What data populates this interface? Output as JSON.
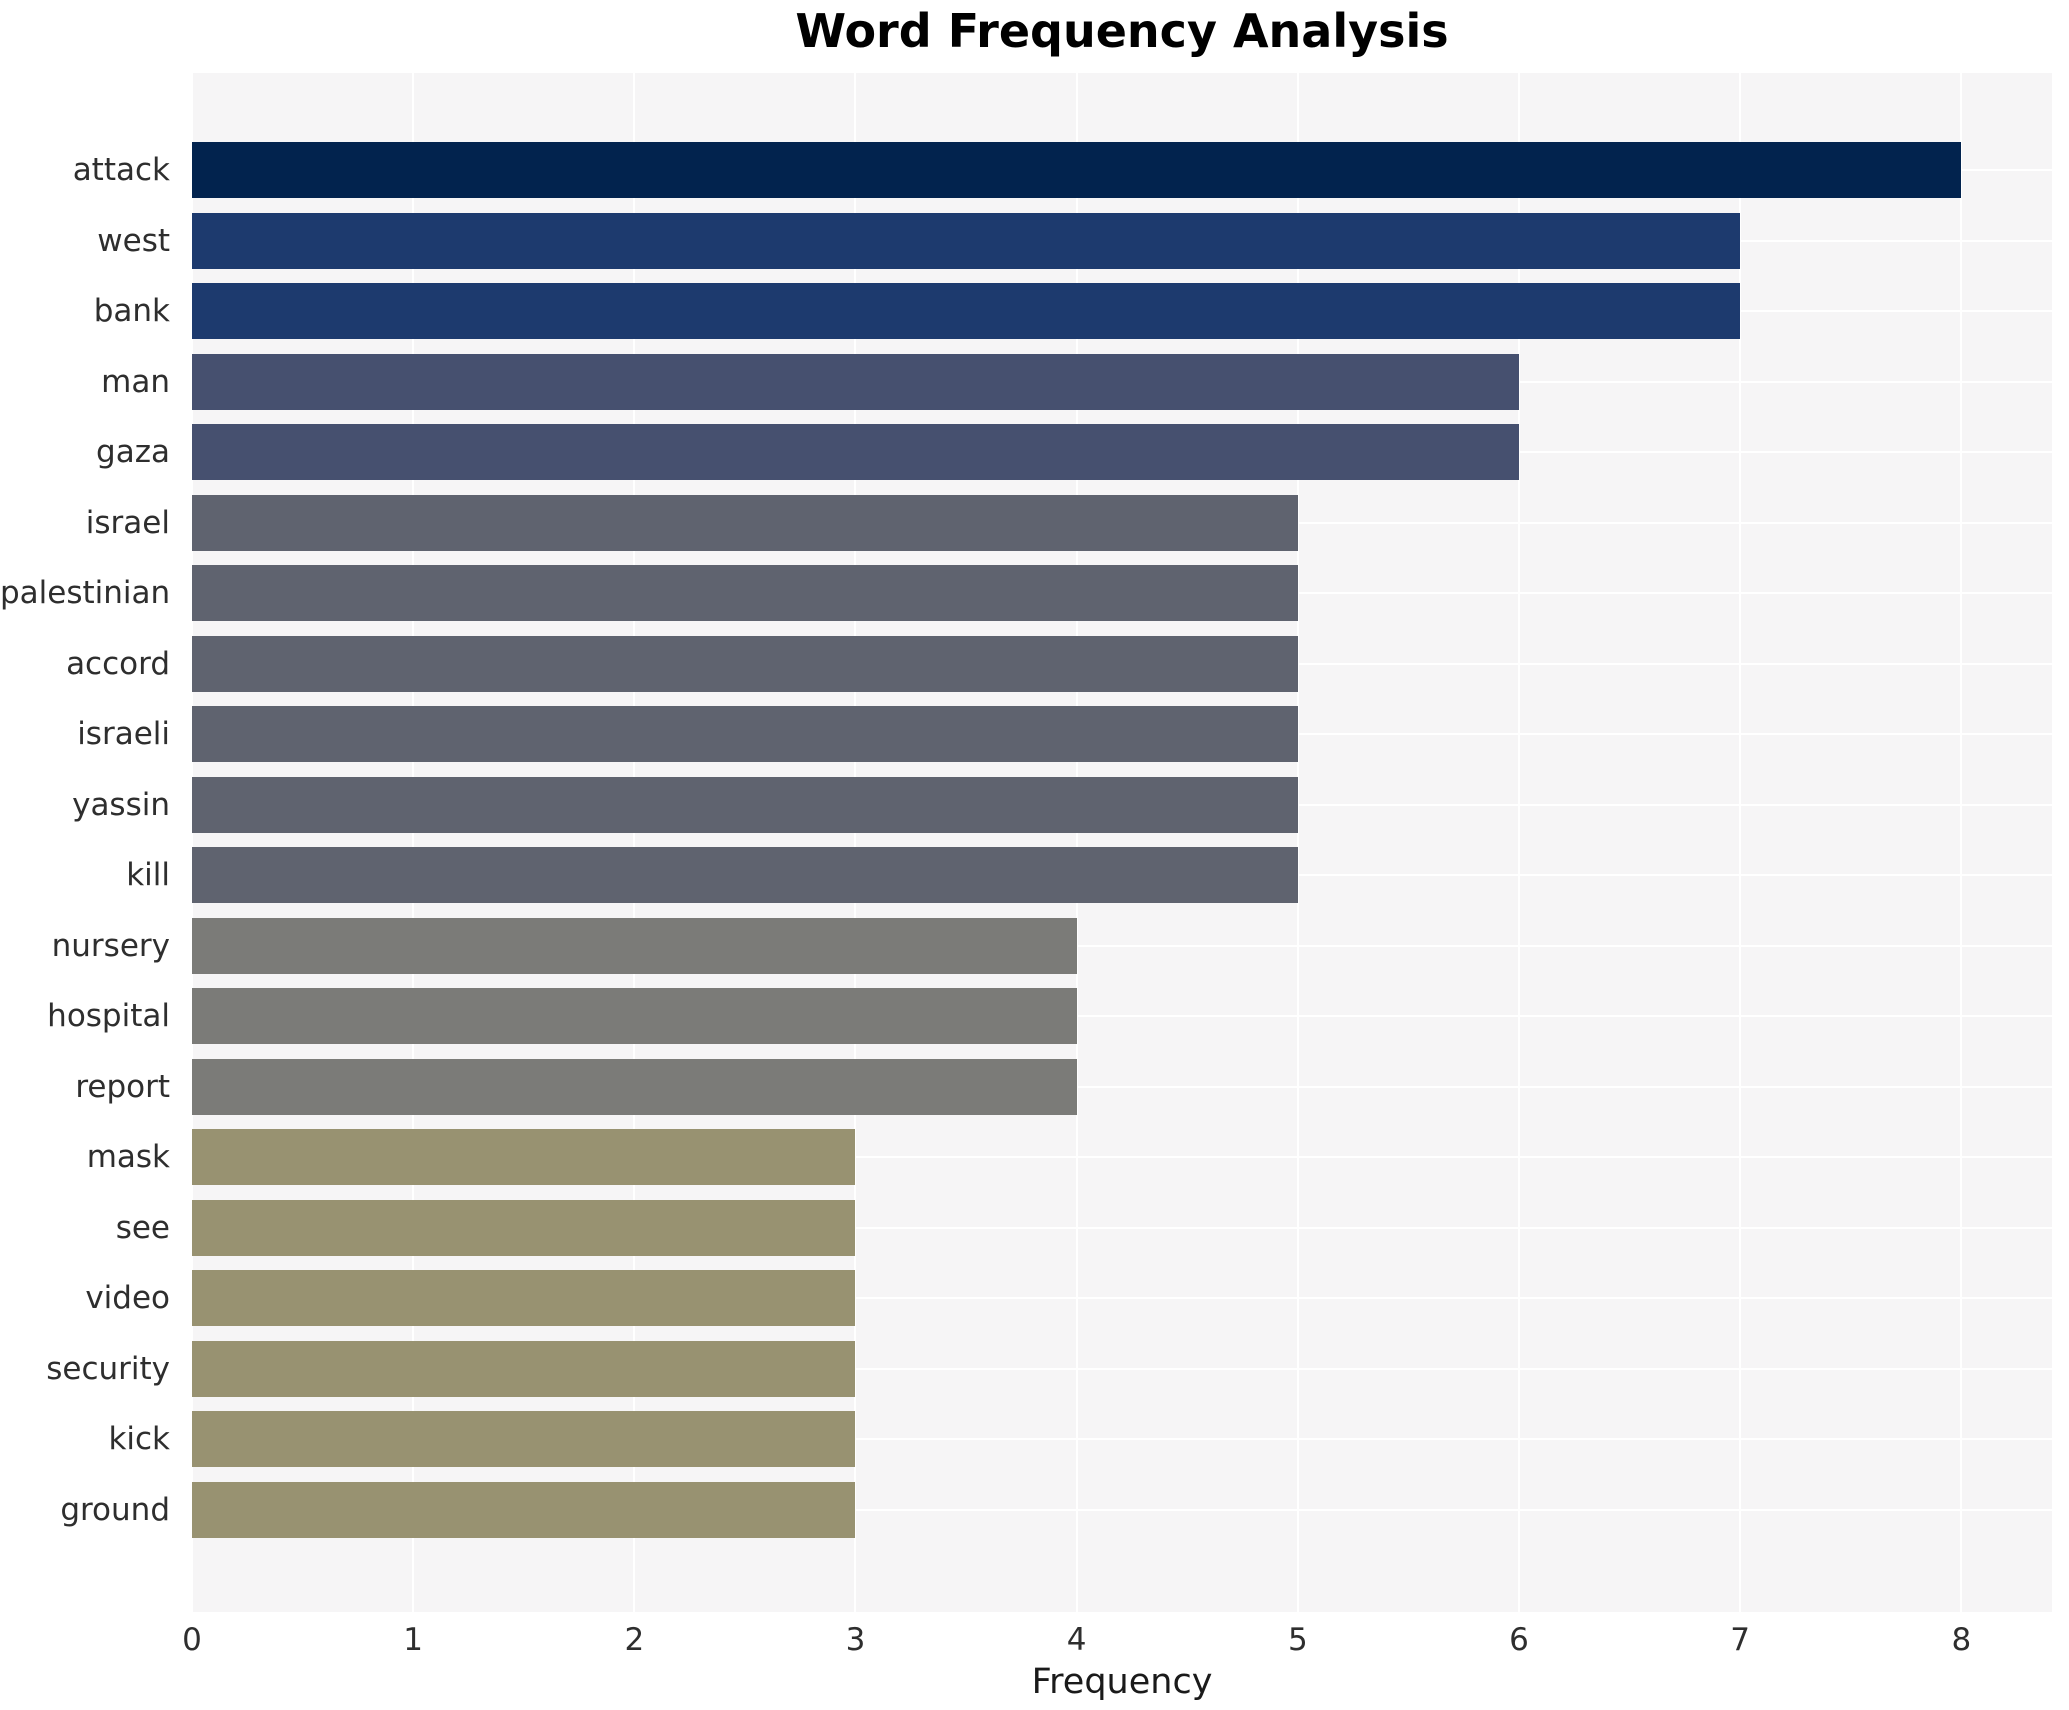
{
  "chart_data": {
    "type": "bar",
    "orientation": "horizontal",
    "title": "Word Frequency Analysis",
    "xlabel": "Frequency",
    "ylabel": "",
    "categories": [
      "attack",
      "west",
      "bank",
      "man",
      "gaza",
      "israel",
      "palestinian",
      "accord",
      "israeli",
      "yassin",
      "kill",
      "nursery",
      "hospital",
      "report",
      "mask",
      "see",
      "video",
      "security",
      "kick",
      "ground"
    ],
    "values": [
      8,
      7,
      7,
      6,
      6,
      5,
      5,
      5,
      5,
      5,
      5,
      4,
      4,
      4,
      3,
      3,
      3,
      3,
      3,
      3
    ],
    "bar_colors": [
      "#02234e",
      "#1d3a6e",
      "#1d3a6e",
      "#46506f",
      "#46506f",
      "#5f636f",
      "#5f636f",
      "#5f636f",
      "#5f636f",
      "#5f636f",
      "#5f636f",
      "#7b7b78",
      "#7b7b78",
      "#7b7b78",
      "#989271",
      "#989271",
      "#989271",
      "#989271",
      "#989271",
      "#989271"
    ],
    "value_color_map": {
      "8": "#02234e",
      "7": "#1d3a6e",
      "6": "#46506f",
      "5": "#5f636f",
      "4": "#7b7b78",
      "3": "#989271"
    },
    "xticks": [
      0,
      1,
      2,
      3,
      4,
      5,
      6,
      7,
      8
    ],
    "xlim": [
      0,
      8.41
    ],
    "grid": true,
    "grid_color": "#ffffff",
    "plot_background": "#f6f5f6",
    "figure_background": "#ffffff",
    "legend": "none"
  }
}
